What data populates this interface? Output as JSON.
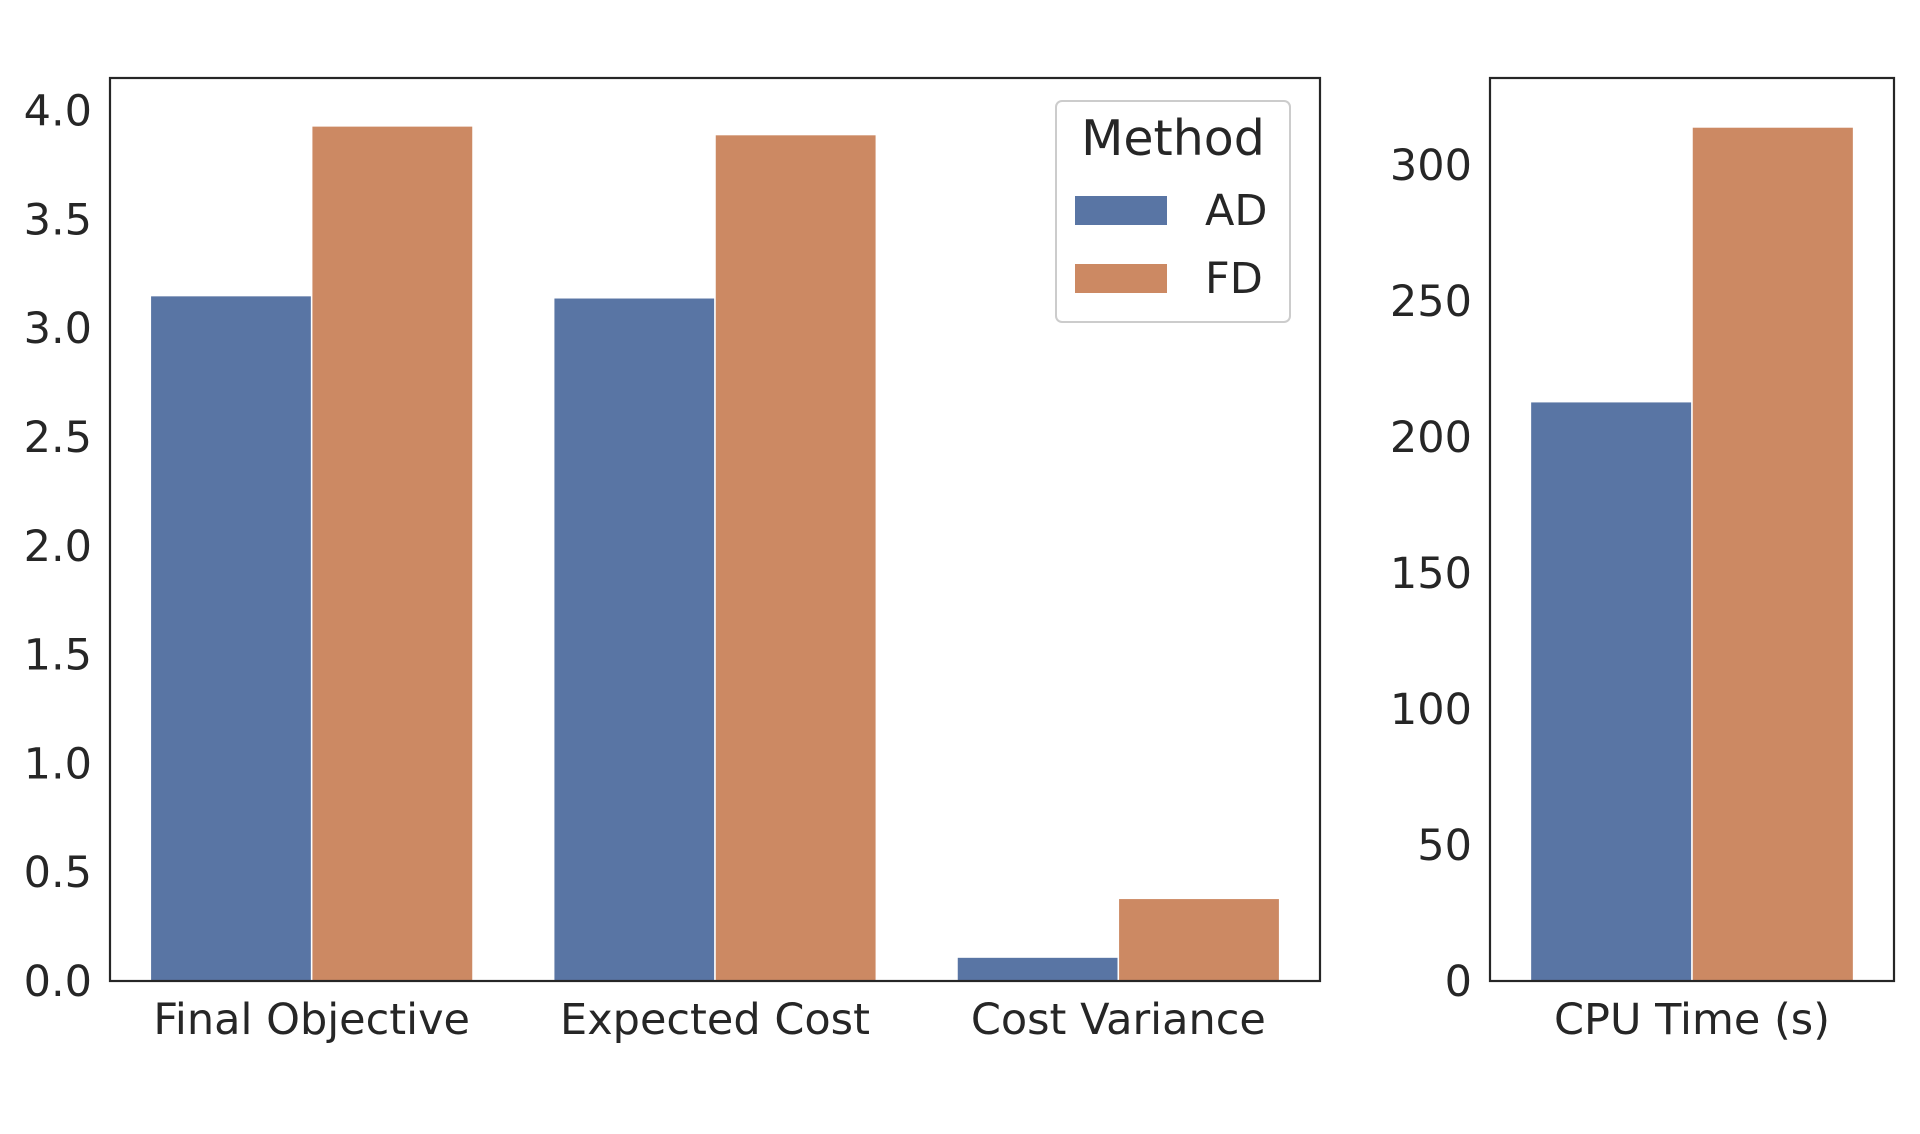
{
  "legend": {
    "title": "Method",
    "entries": [
      {
        "label": "AD",
        "color": "#5975a4"
      },
      {
        "label": "FD",
        "color": "#cc8963"
      }
    ]
  },
  "chart_data": [
    {
      "type": "bar",
      "categories": [
        "Final Objective",
        "Expected Cost",
        "Cost Variance"
      ],
      "series": [
        {
          "name": "AD",
          "color": "#5975a4",
          "values": [
            3.15,
            3.14,
            0.11
          ]
        },
        {
          "name": "FD",
          "color": "#cc8963",
          "values": [
            3.93,
            3.89,
            0.38
          ]
        }
      ],
      "ylim": [
        0,
        4.15
      ],
      "yticks": [
        0.0,
        0.5,
        1.0,
        1.5,
        2.0,
        2.5,
        3.0,
        3.5,
        4.0
      ],
      "ytick_labels": [
        "0.0",
        "0.5",
        "1.0",
        "1.5",
        "2.0",
        "2.5",
        "3.0",
        "3.5",
        "4.0"
      ],
      "grid": false,
      "legend_position": "top-right"
    },
    {
      "type": "bar",
      "categories": [
        "CPU Time (s)"
      ],
      "series": [
        {
          "name": "AD",
          "color": "#5975a4",
          "values": [
            213
          ]
        },
        {
          "name": "FD",
          "color": "#cc8963",
          "values": [
            314
          ]
        }
      ],
      "ylim": [
        0,
        332
      ],
      "yticks": [
        0,
        50,
        100,
        150,
        200,
        250,
        300
      ],
      "ytick_labels": [
        "0",
        "50",
        "100",
        "150",
        "200",
        "250",
        "300"
      ],
      "grid": false
    }
  ]
}
